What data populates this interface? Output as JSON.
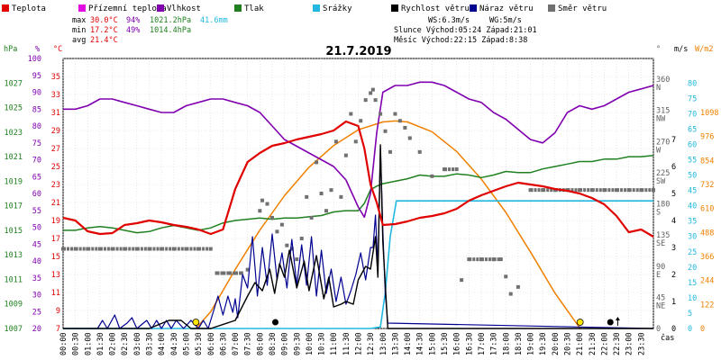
{
  "chart_data": {
    "type": "line",
    "title": "21.7.2019",
    "legend": [
      {
        "label": "Teplota",
        "color": "#e00000"
      },
      {
        "label": "Přízemní teplota",
        "color": "#e00ce0"
      },
      {
        "label": "Vlhkost",
        "color": "#8000b0"
      },
      {
        "label": "Tlak",
        "color": "#208020"
      },
      {
        "label": "Srážky",
        "color": "#20b8e0"
      },
      {
        "label": "Rychlost větru",
        "color": "#000000"
      },
      {
        "label": "Náraz větru",
        "color": "#000090"
      },
      {
        "label": "Směr větru",
        "color": "#707070"
      }
    ],
    "stats": {
      "max_label": "max",
      "max_temp": "30.0°C",
      "max_hum": "94%",
      "max_press": "1021.2hPa",
      "max_rain": "41.6mm",
      "min_label": "min",
      "min_temp": "17.2°C",
      "min_hum": "49%",
      "min_press": "1014.4hPa",
      "avg_label": "avg",
      "avg_temp": "21.4°C",
      "ws": "WS:6.3m/s",
      "wg": "WG:5m/s",
      "sun": "Slunce Východ:05:24  Západ:21:01",
      "moon": "Měsíc  Východ:22:15  Západ:8:38"
    },
    "axes": {
      "hpa_title": "hPa",
      "pct_title": "%",
      "c_title": "°C",
      "deg_title": "°",
      "ms_title": "m/s",
      "wm2_title": "W/m2",
      "time_title": "čas",
      "hpa_ticks": [
        "1027",
        "1025",
        "1023",
        "1021",
        "1019",
        "1017",
        "1015",
        "1013",
        "1011",
        "1009",
        "1007"
      ],
      "pct_ticks": [
        "100",
        "95",
        "90",
        "85",
        "80",
        "75",
        "70",
        "65",
        "60",
        "55",
        "50",
        "45",
        "40",
        "35",
        "30",
        "25",
        "20"
      ],
      "c_ticks": [
        "35",
        "33",
        "31",
        "29",
        "27",
        "25",
        "23",
        "21",
        "19",
        "17",
        "15",
        "13",
        "11",
        "9",
        "7"
      ],
      "deg_ticks": [
        [
          "360",
          "N"
        ],
        [
          "315",
          "NW"
        ],
        [
          "270",
          "W"
        ],
        [
          "225",
          "SW"
        ],
        [
          "180",
          "S"
        ],
        [
          "135",
          "SE"
        ],
        [
          "90",
          "E"
        ],
        [
          "45",
          "NE"
        ],
        [
          "0",
          ""
        ]
      ],
      "ms_ticks": [
        "7",
        "6",
        "5",
        "4",
        "3",
        "2",
        "1",
        "0"
      ],
      "wm2_ticks": [
        "1098",
        "976",
        "854",
        "732",
        "610",
        "488",
        "366",
        "244",
        "122",
        "0"
      ],
      "rain_ticks": [
        "80",
        "75",
        "70",
        "65",
        "60",
        "55",
        "50",
        "45",
        "40",
        "35",
        "30",
        "25",
        "20",
        "15",
        "10",
        "5",
        "0"
      ],
      "time_labels": [
        "00:00",
        "00:30",
        "01:00",
        "01:30",
        "02:00",
        "02:30",
        "03:00",
        "03:30",
        "04:00",
        "04:30",
        "05:00",
        "05:30",
        "06:00",
        "06:30",
        "07:00",
        "07:30",
        "08:00",
        "08:30",
        "09:00",
        "09:30",
        "10:00",
        "10:30",
        "11:00",
        "11:30",
        "12:00",
        "12:30",
        "13:00",
        "13:30",
        "14:00",
        "14:30",
        "15:00",
        "15:30",
        "16:00",
        "16:30",
        "17:00",
        "17:30",
        "18:00",
        "18:30",
        "19:00",
        "19:30",
        "20:00",
        "20:30",
        "21:00",
        "21:30",
        "22:00",
        "22:30",
        "23:00",
        "23:30"
      ]
    },
    "x_range_hours": [
      0,
      24
    ],
    "ylim_temp": [
      7,
      37
    ],
    "ylim_humidity": [
      20,
      100
    ],
    "ylim_pressure": [
      1007,
      1029
    ],
    "ylim_wind_ms": [
      0,
      7
    ],
    "ylim_rain_mm": [
      0,
      80
    ],
    "ylim_direction_deg": [
      0,
      360
    ],
    "ylim_radiation_wm2": [
      0,
      1098
    ],
    "sunrise_h": 5.4,
    "sunset_h": 21.02,
    "series": [
      {
        "name": "Teplota",
        "unit": "°C",
        "color": "#e00000",
        "x": [
          0,
          0.5,
          1,
          1.5,
          2,
          2.5,
          3,
          3.5,
          4,
          4.5,
          5,
          5.5,
          6,
          6.5,
          7,
          7.5,
          8,
          8.5,
          9,
          9.5,
          10,
          10.5,
          11,
          11.5,
          12,
          12.25,
          12.5,
          12.75,
          13,
          13.5,
          14,
          14.5,
          15,
          15.5,
          16,
          16.5,
          17,
          17.5,
          18,
          18.5,
          19,
          19.5,
          20,
          20.5,
          21,
          21.5,
          22,
          22.5,
          23,
          23.5,
          24
        ],
        "y": [
          19.3,
          19.0,
          17.8,
          17.5,
          17.6,
          18.5,
          18.7,
          19.0,
          18.8,
          18.5,
          18.3,
          18.0,
          17.5,
          18.0,
          22.5,
          25.5,
          26.5,
          27.3,
          27.6,
          28.0,
          28.3,
          28.6,
          29.0,
          30.0,
          29.5,
          27.0,
          23.0,
          21.0,
          18.5,
          18.6,
          18.9,
          19.3,
          19.5,
          19.8,
          20.3,
          21.2,
          21.8,
          22.3,
          22.8,
          23.2,
          23.0,
          22.8,
          22.5,
          22.3,
          22.0,
          21.5,
          20.8,
          19.5,
          17.7,
          18.0,
          17.2
        ]
      },
      {
        "name": "Vlhkost",
        "unit": "%",
        "color": "#8000b0",
        "x": [
          0,
          0.5,
          1,
          1.5,
          2,
          2.5,
          3,
          3.5,
          4,
          4.5,
          5,
          5.5,
          6,
          6.5,
          7,
          7.5,
          8,
          8.5,
          9,
          9.5,
          10,
          10.5,
          11,
          11.5,
          12,
          12.25,
          12.5,
          12.75,
          13,
          13.5,
          14,
          14.5,
          15,
          15.5,
          16,
          16.5,
          17,
          17.5,
          18,
          18.5,
          19,
          19.5,
          20,
          20.5,
          21,
          21.5,
          22,
          22.5,
          23,
          23.5,
          24
        ],
        "y": [
          85,
          85,
          86,
          88,
          88,
          87,
          86,
          85,
          84,
          84,
          86,
          87,
          88,
          88,
          87,
          86,
          84,
          80,
          76,
          74,
          72,
          70,
          68,
          64,
          56,
          53,
          60,
          78,
          90,
          92,
          92,
          93,
          93,
          92,
          90,
          88,
          87,
          84,
          82,
          79,
          76,
          75,
          78,
          84,
          86,
          85,
          86,
          88,
          90,
          91,
          92
        ]
      },
      {
        "name": "Tlak",
        "unit": "hPa",
        "color": "#208020",
        "x": [
          0,
          0.5,
          1,
          1.5,
          2,
          2.5,
          3,
          3.5,
          4,
          4.5,
          5,
          5.5,
          6,
          6.5,
          7,
          7.5,
          8,
          8.5,
          9,
          9.5,
          10,
          10.5,
          11,
          11.5,
          12,
          12.25,
          12.5,
          12.75,
          13,
          13.5,
          14,
          14.5,
          15,
          15.5,
          16,
          16.5,
          17,
          17.5,
          18,
          18.5,
          19,
          19.5,
          20,
          20.5,
          21,
          21.5,
          22,
          22.5,
          23,
          23.5,
          24
        ],
        "y": [
          1015.0,
          1015.0,
          1015.2,
          1015.3,
          1015.2,
          1015.0,
          1014.8,
          1014.9,
          1015.2,
          1015.4,
          1015.2,
          1015.0,
          1015.2,
          1015.6,
          1015.8,
          1015.9,
          1016.0,
          1015.9,
          1016.0,
          1016.0,
          1016.1,
          1016.2,
          1016.5,
          1016.6,
          1016.6,
          1017.2,
          1018.3,
          1018.6,
          1018.8,
          1019.0,
          1019.2,
          1019.5,
          1019.4,
          1019.4,
          1019.6,
          1019.5,
          1019.3,
          1019.5,
          1019.8,
          1019.7,
          1019.7,
          1020.0,
          1020.2,
          1020.4,
          1020.6,
          1020.6,
          1020.8,
          1020.8,
          1021.0,
          1021.0,
          1021.1
        ]
      },
      {
        "name": "Srážky",
        "unit": "mm",
        "color": "#20b8e0",
        "x": [
          0,
          11.5,
          12.5,
          12.9,
          13.1,
          13.3,
          13.55,
          14,
          24
        ],
        "y": [
          0,
          0,
          0,
          0.5,
          11.8,
          30,
          41.6,
          41.6,
          41.6
        ]
      },
      {
        "name": "Rychlost větru",
        "unit": "m/s",
        "color": "#000000",
        "x": [
          0,
          3.5,
          4.3,
          4.8,
          5.2,
          6,
          7,
          7.5,
          7.8,
          8.1,
          8.4,
          8.6,
          8.8,
          9.0,
          9.2,
          9.5,
          9.8,
          10.0,
          10.3,
          10.6,
          10.8,
          11.0,
          11.3,
          11.5,
          11.8,
          12.0,
          12.3,
          12.5,
          12.7,
          12.8,
          12.9,
          13.0,
          13.2,
          24
        ],
        "y": [
          0,
          0,
          0.3,
          0.3,
          0,
          0,
          0.3,
          1.2,
          1.7,
          1.4,
          2.2,
          1.3,
          2.4,
          1.9,
          2.9,
          1.5,
          2.5,
          1.4,
          2.7,
          1.1,
          1.9,
          0.8,
          0.9,
          1.0,
          0.9,
          1.8,
          2.3,
          2.2,
          3.4,
          1.9,
          6.8,
          3.2,
          0,
          0
        ]
      },
      {
        "name": "Náraz větru",
        "unit": "m/s",
        "color": "#000090",
        "x": [
          0,
          1.4,
          1.6,
          1.8,
          2.1,
          2.3,
          2.6,
          2.8,
          3.0,
          3.4,
          3.6,
          3.8,
          4.0,
          4.2,
          4.4,
          4.6,
          4.9,
          5.2,
          5.5,
          5.7,
          5.9,
          6.1,
          6.3,
          6.5,
          6.7,
          6.9,
          7.0,
          7.1,
          7.3,
          7.5,
          7.7,
          7.9,
          8.1,
          8.3,
          8.5,
          8.7,
          8.9,
          9.1,
          9.3,
          9.5,
          9.7,
          9.9,
          10.1,
          10.3,
          10.5,
          10.7,
          10.9,
          11.1,
          11.3,
          11.5,
          11.7,
          11.9,
          12.1,
          12.3,
          12.5,
          12.6,
          12.7,
          12.8,
          12.9,
          13.0,
          13.1,
          13.2,
          24
        ],
        "y": [
          0,
          0,
          0.3,
          0,
          0.5,
          0,
          0.2,
          0.4,
          0,
          0.3,
          0,
          0.3,
          0,
          0.3,
          0,
          0.3,
          0,
          0.3,
          0,
          0.3,
          0,
          0.6,
          1.2,
          0.5,
          1.2,
          0.6,
          1.1,
          0.4,
          2.0,
          1.5,
          3.4,
          1.2,
          3.0,
          1.6,
          3.5,
          1.8,
          2.8,
          1.5,
          3.3,
          1.6,
          3.1,
          1.6,
          3.4,
          1.2,
          2.9,
          1.3,
          2.2,
          1.0,
          1.9,
          0.9,
          1.4,
          2.0,
          2.8,
          1.8,
          3.0,
          3.0,
          4.2,
          2.2,
          6.7,
          3.6,
          1.3,
          0.2,
          0
        ]
      },
      {
        "name": "Směr větru",
        "unit": "°",
        "color": "#707070",
        "kind": "points",
        "x": [
          0,
          0.5,
          1,
          1.5,
          2,
          2.5,
          3,
          3.5,
          4,
          4.5,
          5,
          5.5,
          6,
          6.25,
          6.5,
          6.75,
          7,
          7.25,
          7.5,
          8,
          8.1,
          8.3,
          8.5,
          8.7,
          8.9,
          9.1,
          9.3,
          9.5,
          9.7,
          9.9,
          10.1,
          10.3,
          10.5,
          10.7,
          10.9,
          11.1,
          11.3,
          11.5,
          11.7,
          11.9,
          12.1,
          12.3,
          12.5,
          12.6,
          12.7,
          12.9,
          13.1,
          13.3,
          13.5,
          13.7,
          13.9,
          14.1,
          14.5,
          15,
          15.5,
          16,
          16.2,
          16.5,
          17,
          17.5,
          17.8,
          18,
          18.2,
          18.5,
          19,
          19.5,
          20,
          20.5,
          21,
          21.5,
          22,
          22.5,
          23,
          23.5,
          24
        ],
        "y": [
          115,
          115,
          115,
          115,
          115,
          115,
          115,
          115,
          115,
          115,
          115,
          115,
          115,
          80,
          80,
          80,
          80,
          80,
          85,
          170,
          185,
          180,
          160,
          140,
          150,
          120,
          115,
          100,
          130,
          190,
          160,
          240,
          195,
          170,
          200,
          270,
          190,
          250,
          310,
          270,
          300,
          330,
          340,
          345,
          330,
          310,
          285,
          255,
          310,
          300,
          290,
          275,
          255,
          220,
          230,
          230,
          70,
          100,
          100,
          100,
          100,
          75,
          50,
          60,
          200,
          200,
          200,
          200,
          200,
          200,
          200,
          200,
          200,
          200,
          200
        ]
      },
      {
        "name": "Sluneční svit",
        "unit": "W/m2",
        "color": "#f08000",
        "x": [
          5.4,
          6,
          7,
          8,
          9,
          10,
          11,
          12,
          13,
          13.5,
          14,
          15,
          16,
          17,
          18,
          19,
          20,
          21.02
        ],
        "y": [
          0,
          85,
          300,
          500,
          675,
          820,
          930,
          1010,
          1050,
          1055,
          1050,
          1000,
          900,
          760,
          590,
          390,
          180,
          0
        ]
      }
    ]
  }
}
